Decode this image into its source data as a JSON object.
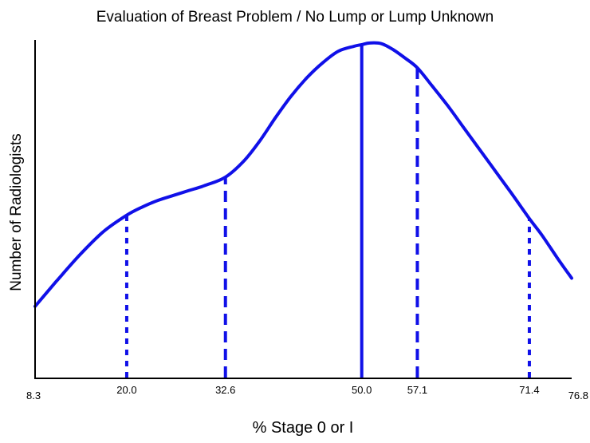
{
  "chart_data": {
    "type": "line",
    "title": "Evaluation of Breast Problem / No Lump or Lump Unknown",
    "xlabel": "% Stage 0 or I",
    "ylabel": "Number of Radiologists",
    "xlim": [
      8.3,
      76.8
    ],
    "ylim": [
      0,
      1
    ],
    "y_ticks_shown": false,
    "grid": false,
    "legend": "none",
    "line_color": "#1010e8",
    "x_tick_labels": [
      "8.3",
      "20.0",
      "32.6",
      "50.0",
      "57.1",
      "71.4",
      "76.8"
    ],
    "curve": {
      "x": [
        8.3,
        11,
        14,
        17,
        20,
        22,
        24,
        26,
        28,
        30,
        32.6,
        35,
        37,
        39,
        41,
        43,
        45,
        47,
        49,
        50,
        51,
        52.5,
        54,
        55.5,
        57.1,
        59,
        61,
        63,
        65,
        67,
        69,
        71.4,
        73,
        75,
        76.8
      ],
      "y": [
        0.215,
        0.29,
        0.37,
        0.44,
        0.49,
        0.515,
        0.535,
        0.55,
        0.565,
        0.58,
        0.605,
        0.655,
        0.715,
        0.785,
        0.85,
        0.905,
        0.95,
        0.985,
        1.0,
        1.005,
        1.01,
        1.008,
        0.99,
        0.965,
        0.935,
        0.88,
        0.82,
        0.755,
        0.69,
        0.625,
        0.56,
        0.48,
        0.43,
        0.36,
        0.3
      ]
    },
    "reference_lines": [
      {
        "x": 20.0,
        "style": "dotted",
        "y_top": 0.49
      },
      {
        "x": 32.6,
        "style": "dashed",
        "y_top": 0.605
      },
      {
        "x": 50.0,
        "style": "solid",
        "y_top": 1.005
      },
      {
        "x": 57.1,
        "style": "dashed",
        "y_top": 0.935
      },
      {
        "x": 71.4,
        "style": "dotted",
        "y_top": 0.48
      }
    ]
  }
}
